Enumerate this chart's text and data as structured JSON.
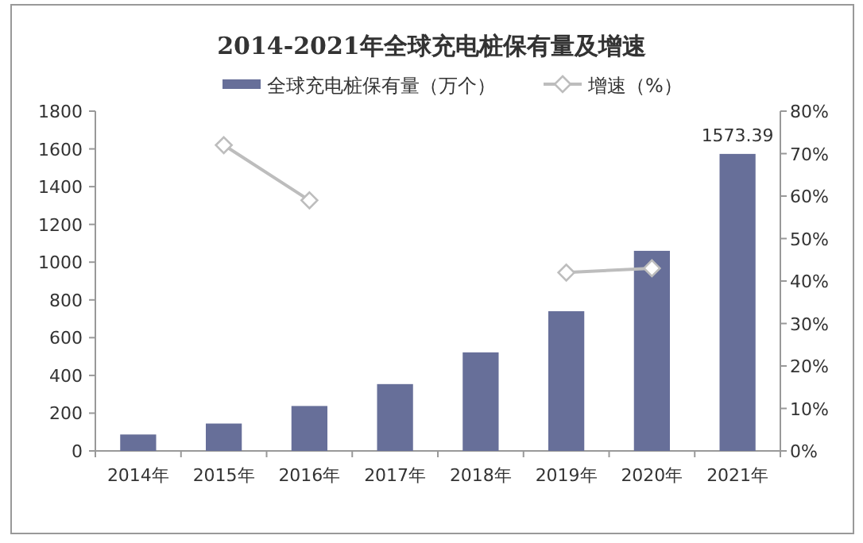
{
  "chart_data": {
    "type": "bar",
    "title": "2014-2021年全球充电桩保有量及增速",
    "categories": [
      "2014年",
      "2015年",
      "2016年",
      "2017年",
      "2018年",
      "2019年",
      "2020年",
      "2021年"
    ],
    "series": [
      {
        "name": "全球充电桩保有量（万个）",
        "color": "#676f99",
        "values": [
          87,
          145,
          238,
          354,
          522,
          740,
          1060,
          1573.39
        ],
        "value_labels": [
          null,
          null,
          null,
          null,
          null,
          null,
          null,
          "1573.39"
        ]
      },
      {
        "name": "增速（%）",
        "type": "line",
        "axis": "y2",
        "color": "#bdbdbd",
        "values": [
          null,
          72,
          59,
          null,
          null,
          42,
          43,
          null
        ]
      }
    ],
    "ylim": [
      0,
      1800
    ],
    "yticks": [
      0,
      200,
      400,
      600,
      800,
      1000,
      1200,
      1400,
      1600,
      1800
    ],
    "y2lim": [
      0,
      80
    ],
    "y2ticks": [
      {
        "value": 0,
        "label": "0%"
      },
      {
        "value": 10,
        "label": "10%"
      },
      {
        "value": 20,
        "label": "20%"
      },
      {
        "value": 30,
        "label": "30%"
      },
      {
        "value": 40,
        "label": "40%"
      },
      {
        "value": 50,
        "label": "50%"
      },
      {
        "value": 60,
        "label": "60%"
      },
      {
        "value": 70,
        "label": "70%"
      },
      {
        "value": 80,
        "label": "80%"
      }
    ],
    "legend": "top",
    "marker": "diamond",
    "line_style": "solid",
    "grid": false
  }
}
